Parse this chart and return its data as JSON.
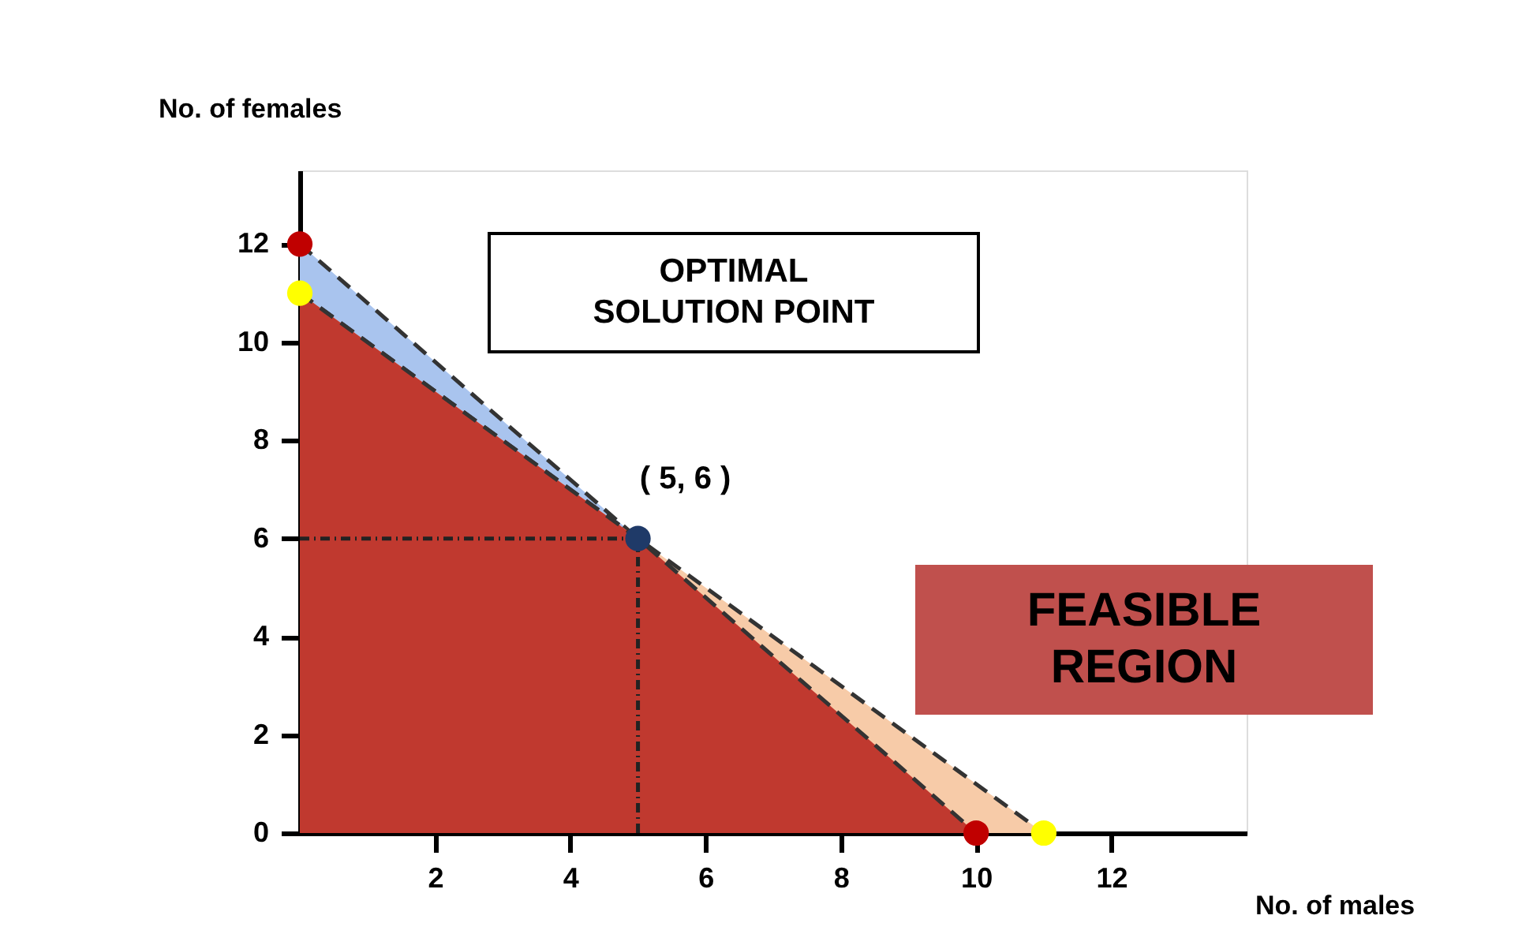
{
  "chart_data": {
    "type": "area",
    "xlabel": "No. of males",
    "ylabel": "No. of females",
    "xlim": [
      0,
      14
    ],
    "ylim": [
      0,
      13.5
    ],
    "xticks": [
      2,
      4,
      6,
      8,
      10,
      12
    ],
    "yticks": [
      0,
      2,
      4,
      6,
      8,
      10,
      12
    ],
    "grid": false,
    "series": [
      {
        "color": "#a9c4ee",
        "line_style": "dashed",
        "x": [
          0,
          5,
          10
        ],
        "values": [
          12,
          6,
          0
        ]
      },
      {
        "color": "#f7cba8",
        "line_style": "dashed",
        "x": [
          0,
          5,
          11
        ],
        "values": [
          11,
          6,
          0
        ]
      },
      {
        "color": "#c0392f",
        "line_style": "dashed",
        "x": [
          0,
          5,
          10
        ],
        "values": [
          11,
          6,
          0
        ]
      },
      {
        "type": "line",
        "color": "#222222",
        "line_style": "dotted",
        "x": [
          0,
          5
        ],
        "values": [
          6,
          6
        ]
      },
      {
        "type": "line",
        "color": "#222222",
        "line_style": "dotted",
        "x": [
          5,
          5
        ],
        "values": [
          0,
          6
        ]
      },
      {
        "type": "scatter",
        "color": "#c00000",
        "marker": "circle",
        "x": [
          0,
          10
        ],
        "values": [
          12,
          0
        ]
      },
      {
        "type": "scatter",
        "color": "#ffff00",
        "marker": "circle",
        "x": [
          0,
          11
        ],
        "values": [
          11,
          0
        ]
      },
      {
        "type": "scatter",
        "color": "#1f3a68",
        "marker": "circle",
        "x": [
          5
        ],
        "values": [
          6
        ]
      }
    ],
    "annotations": [
      "OPTIMAL SOLUTION POINT",
      {
        "text": "( 5, 6 )",
        "x": 5,
        "y": 6
      },
      "FEASIBLE REGION"
    ]
  }
}
